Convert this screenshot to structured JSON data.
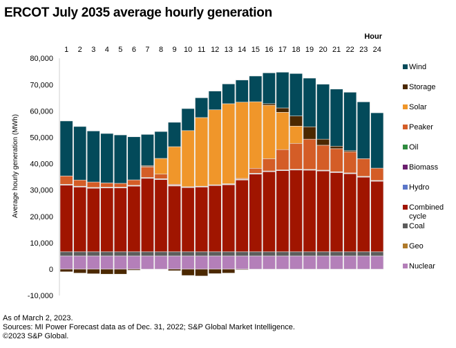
{
  "chart_data": {
    "type": "bar",
    "stacked": true,
    "title": "ERCOT July 2035 average hourly generation",
    "xlabel": "Hour",
    "ylabel": "Average hourly generation (MWh)",
    "ylim": [
      -10000,
      80000
    ],
    "yticks": [
      -10000,
      0,
      10000,
      20000,
      30000,
      40000,
      50000,
      60000,
      70000,
      80000
    ],
    "ytick_labels": [
      "-10,000",
      "0",
      "10,000",
      "20,000",
      "30,000",
      "40,000",
      "50,000",
      "60,000",
      "70,000",
      "80,000"
    ],
    "categories": [
      "1",
      "2",
      "3",
      "4",
      "5",
      "6",
      "7",
      "8",
      "9",
      "10",
      "11",
      "12",
      "13",
      "14",
      "15",
      "16",
      "17",
      "18",
      "19",
      "20",
      "21",
      "22",
      "23",
      "24"
    ],
    "legend_position": "right",
    "series": [
      {
        "name": "Nuclear",
        "color": "#b47fb9",
        "values": [
          5000,
          5000,
          5000,
          5000,
          5000,
          5000,
          5000,
          5000,
          5000,
          5000,
          5000,
          5000,
          5000,
          5000,
          5000,
          5000,
          5000,
          5000,
          5000,
          5000,
          5000,
          5000,
          5000,
          5000
        ]
      },
      {
        "name": "Geo",
        "color": "#b07a2a",
        "values": [
          0,
          0,
          0,
          0,
          0,
          0,
          0,
          0,
          0,
          0,
          0,
          0,
          0,
          0,
          0,
          0,
          0,
          0,
          0,
          0,
          0,
          0,
          0,
          0
        ]
      },
      {
        "name": "Coal",
        "color": "#5c5c5c",
        "values": [
          1600,
          1600,
          1600,
          1600,
          1600,
          1600,
          1600,
          1600,
          1600,
          1600,
          1600,
          1600,
          1600,
          1600,
          1600,
          1600,
          1600,
          1600,
          1600,
          1600,
          1600,
          1600,
          1600,
          1600
        ]
      },
      {
        "name": "Combined cycle",
        "color": "#a01500",
        "values": [
          25250,
          24550,
          24100,
          24200,
          24200,
          24900,
          27850,
          27400,
          24950,
          24350,
          24550,
          25100,
          25400,
          27200,
          29450,
          30350,
          30750,
          31000,
          30950,
          30650,
          30050,
          29600,
          28300,
          26750
        ]
      },
      {
        "name": "Hydro",
        "color": "#5b77c9",
        "values": [
          150,
          150,
          150,
          150,
          150,
          150,
          150,
          150,
          150,
          150,
          150,
          150,
          150,
          150,
          150,
          150,
          150,
          150,
          150,
          150,
          150,
          150,
          150,
          150
        ]
      },
      {
        "name": "Biomass",
        "color": "#6b1f6e",
        "values": [
          150,
          150,
          150,
          150,
          150,
          150,
          150,
          150,
          150,
          150,
          150,
          150,
          150,
          150,
          150,
          150,
          150,
          150,
          150,
          150,
          150,
          150,
          150,
          150
        ]
      },
      {
        "name": "Oil",
        "color": "#2e8b3e",
        "values": [
          0,
          0,
          0,
          0,
          0,
          0,
          0,
          0,
          0,
          0,
          0,
          0,
          0,
          0,
          0,
          0,
          0,
          0,
          0,
          0,
          0,
          0,
          0,
          0
        ]
      },
      {
        "name": "Peaker",
        "color": "#d45d27",
        "values": [
          3200,
          2350,
          2050,
          1600,
          1450,
          2050,
          4100,
          1750,
          350,
          0,
          0,
          0,
          100,
          300,
          1900,
          4650,
          7700,
          9800,
          11450,
          9450,
          8750,
          8000,
          6700,
          4650
        ]
      },
      {
        "name": "Solar",
        "color": "#f0962a",
        "values": [
          0,
          0,
          0,
          0,
          0,
          0,
          50,
          5950,
          14250,
          21300,
          26050,
          28450,
          30350,
          28950,
          25250,
          20250,
          14150,
          6550,
          0,
          0,
          0,
          0,
          0,
          0
        ]
      },
      {
        "name": "Storage",
        "color": "#4b2800",
        "values": [
          -1000,
          -1500,
          -1750,
          -1900,
          -1900,
          -400,
          400,
          0,
          -600,
          -2400,
          -2600,
          -1700,
          -1500,
          -250,
          0,
          600,
          1650,
          3850,
          4700,
          2300,
          950,
          450,
          0,
          0
        ]
      },
      {
        "name": "Wind",
        "color": "#034a5a",
        "values": [
          20850,
          20300,
          19350,
          18750,
          18350,
          16350,
          11800,
          10200,
          9250,
          8350,
          7500,
          7100,
          7500,
          8400,
          9750,
          11700,
          13550,
          16100,
          18450,
          20850,
          21650,
          22150,
          21550,
          21000
        ]
      }
    ],
    "legend_order": [
      "Wind",
      "Storage",
      "Solar",
      "Peaker",
      "Oil",
      "Biomass",
      "Hydro",
      "Combined cycle",
      "Coal",
      "Geo",
      "Nuclear"
    ]
  },
  "notes": {
    "as_of": "As of March 2, 2023.",
    "sources": "Sources: MI Power Forecast data as of Dec. 31, 2022; S&P Global Market Intelligence.",
    "copyright": "©2023 S&P Global."
  }
}
